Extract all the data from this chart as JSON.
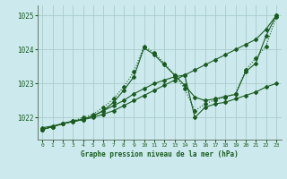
{
  "title": "Graphe pression niveau de la mer (hPa)",
  "bg_color": "#cce9ed",
  "grid_color": "#aacccc",
  "line_color": "#1a5c20",
  "xlim": [
    -0.5,
    23.5
  ],
  "ylim": [
    1021.35,
    1025.3
  ],
  "yticks": [
    1022,
    1023,
    1024,
    1025
  ],
  "xticks": [
    0,
    1,
    2,
    3,
    4,
    5,
    6,
    7,
    8,
    9,
    10,
    11,
    12,
    13,
    14,
    15,
    16,
    17,
    18,
    19,
    20,
    21,
    22,
    23
  ],
  "series": [
    {
      "x": [
        0,
        1,
        2,
        3,
        4,
        5,
        6,
        7,
        8,
        9,
        10,
        11,
        12,
        13,
        14,
        15,
        16,
        17,
        18,
        19,
        20,
        21,
        22,
        23
      ],
      "y": [
        1021.7,
        1021.75,
        1021.82,
        1021.88,
        1021.94,
        1022.0,
        1022.1,
        1022.2,
        1022.35,
        1022.5,
        1022.65,
        1022.8,
        1022.95,
        1023.1,
        1023.25,
        1023.4,
        1023.55,
        1023.7,
        1023.85,
        1024.0,
        1024.15,
        1024.3,
        1024.6,
        1025.0
      ],
      "style": "-",
      "marker": "D",
      "markersize": 2.0,
      "linewidth": 0.8
    },
    {
      "x": [
        0,
        1,
        2,
        3,
        4,
        5,
        6,
        7,
        8,
        9,
        10,
        11,
        12,
        13,
        14,
        15,
        16,
        17,
        18,
        19,
        20,
        21,
        22,
        23
      ],
      "y": [
        1021.65,
        1021.73,
        1021.82,
        1021.88,
        1021.94,
        1022.05,
        1022.2,
        1022.45,
        1022.8,
        1023.2,
        1024.05,
        1023.85,
        1023.55,
        1023.25,
        1022.95,
        1022.6,
        1022.5,
        1022.55,
        1022.62,
        1022.68,
        1023.35,
        1023.6,
        1024.4,
        1025.0
      ],
      "style": "-",
      "marker": "D",
      "markersize": 2.0,
      "linewidth": 0.8
    },
    {
      "x": [
        0,
        1,
        2,
        3,
        4,
        5,
        6,
        7,
        8,
        9,
        10,
        11,
        12,
        13,
        14,
        15,
        16,
        17,
        18,
        19,
        20,
        21,
        22,
        23
      ],
      "y": [
        1021.65,
        1021.73,
        1021.82,
        1021.9,
        1022.0,
        1022.1,
        1022.3,
        1022.55,
        1022.9,
        1023.35,
        1024.1,
        1023.9,
        1023.6,
        1023.25,
        1022.85,
        1022.2,
        1022.4,
        1022.52,
        1022.6,
        1022.7,
        1023.4,
        1023.75,
        1024.1,
        1024.95
      ],
      "style": ":",
      "marker": "D",
      "markersize": 2.0,
      "linewidth": 0.8
    },
    {
      "x": [
        0,
        1,
        2,
        3,
        4,
        5,
        6,
        7,
        8,
        9,
        10,
        11,
        12,
        13,
        14,
        15,
        16,
        17,
        18,
        19,
        20,
        21,
        22,
        23
      ],
      "y": [
        1021.65,
        1021.73,
        1021.82,
        1021.9,
        1021.95,
        1022.05,
        1022.2,
        1022.35,
        1022.5,
        1022.7,
        1022.85,
        1023.0,
        1023.1,
        1023.2,
        1023.25,
        1022.0,
        1022.3,
        1022.4,
        1022.45,
        1022.55,
        1022.65,
        1022.75,
        1022.9,
        1023.0
      ],
      "style": "-",
      "marker": "D",
      "markersize": 2.0,
      "linewidth": 0.8
    }
  ]
}
